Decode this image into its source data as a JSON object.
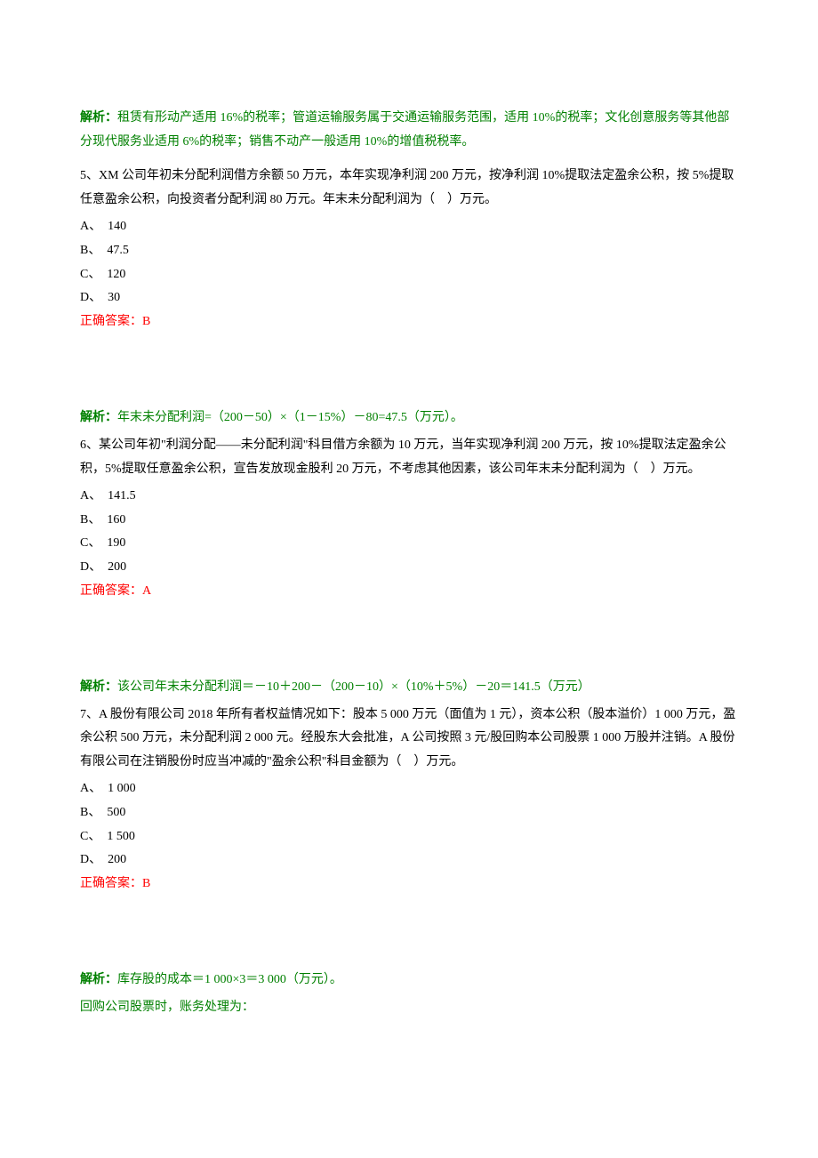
{
  "analysis4": {
    "label": "解析：",
    "text": "租赁有形动产适用 16%的税率；管道运输服务属于交通运输服务范围，适用 10%的税率；文化创意服务等其他部分现代服务业适用 6%的税率；销售不动产一般适用 10%的增值税税率。"
  },
  "q5": {
    "stem": "5、XM 公司年初未分配利润借方余额 50 万元，本年实现净利润 200 万元，按净利润 10%提取法定盈余公积，按 5%提取任意盈余公积，向投资者分配利润 80 万元。年末未分配利润为（　）万元。",
    "options": {
      "A": "A、　140",
      "B": "B、　47.5",
      "C": "C、　120",
      "D": "D、　30"
    },
    "answer": "正确答案：B",
    "analysis_label": "解析：",
    "analysis_text": "年末未分配利润=（200－50）×（1－15%）－80=47.5（万元）。"
  },
  "q6": {
    "stem": "6、某公司年初\"利润分配——未分配利润\"科目借方余额为 10 万元，当年实现净利润 200 万元，按 10%提取法定盈余公积，5%提取任意盈余公积，宣告发放现金股利 20 万元，不考虑其他因素，该公司年末未分配利润为（　）万元。",
    "options": {
      "A": "A、　141.5",
      "B": "B、　160",
      "C": "C、　190",
      "D": "D、　200"
    },
    "answer": "正确答案：A",
    "analysis_label": "解析：",
    "analysis_text": "该公司年末未分配利润＝－10＋200－（200－10）×（10%＋5%）－20＝141.5（万元）"
  },
  "q7": {
    "stem": "7、A 股份有限公司 2018 年所有者权益情况如下：股本 5 000 万元（面值为 1 元），资本公积（股本溢价）1 000 万元，盈余公积 500 万元，未分配利润 2 000 元。经股东大会批准，A 公司按照 3 元/股回购本公司股票 1 000 万股并注销。A 股份有限公司在注销股份时应当冲减的\"盈余公积\"科目金额为（　）万元。",
    "options": {
      "A": "A、　1 000",
      "B": "B、　500",
      "C": "C、　1 500",
      "D": "D、　200"
    },
    "answer": "正确答案：B",
    "analysis_label": "解析：",
    "analysis_line1": "库存股的成本＝1 000×3＝3 000（万元）。",
    "analysis_line2": "回购公司股票时，账务处理为："
  }
}
